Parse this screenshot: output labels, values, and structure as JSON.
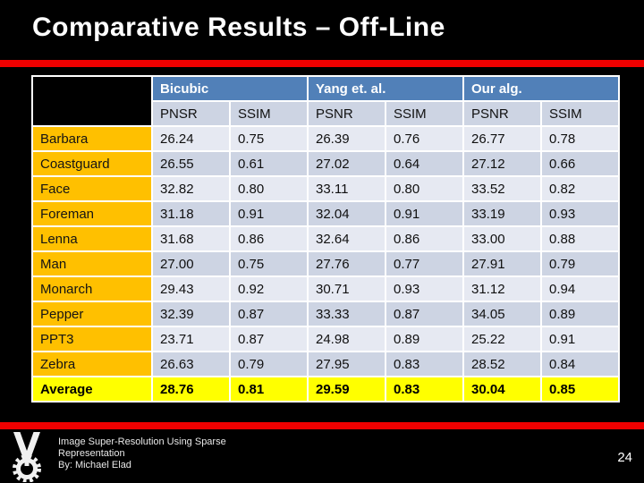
{
  "slide": {
    "title": "Comparative Results – Off-Line",
    "page_number": "24",
    "footer_line1": "Image Super-Resolution Using Sparse",
    "footer_line2": "Representation",
    "footer_line3": "By: Michael Elad",
    "logo": "technion-emblem"
  },
  "colors": {
    "header_blue": "#5180b8",
    "subheader_gray_blue": "#cdd4e3",
    "row_light": "#e6e9f2",
    "row_dark": "#cdd4e3",
    "label_orange": "#ffc000",
    "average_yellow": "#ffff00",
    "accent_red_bar": "#ef0000",
    "background_black": "#000000"
  },
  "table": {
    "groups": [
      {
        "label": "Bicubic"
      },
      {
        "label": "Yang et. al."
      },
      {
        "label": "Our alg."
      }
    ],
    "subheaders": [
      "PNSR",
      "SSIM",
      "PSNR",
      "SSIM",
      "PSNR",
      "SSIM"
    ],
    "rows": [
      {
        "label": "Barbara",
        "values": [
          "26.24",
          "0.75",
          "26.39",
          "0.76",
          "26.77",
          "0.78"
        ]
      },
      {
        "label": "Coastguard",
        "values": [
          "26.55",
          "0.61",
          "27.02",
          "0.64",
          "27.12",
          "0.66"
        ]
      },
      {
        "label": "Face",
        "values": [
          "32.82",
          "0.80",
          "33.11",
          "0.80",
          "33.52",
          "0.82"
        ]
      },
      {
        "label": "Foreman",
        "values": [
          "31.18",
          "0.91",
          "32.04",
          "0.91",
          "33.19",
          "0.93"
        ]
      },
      {
        "label": "Lenna",
        "values": [
          "31.68",
          "0.86",
          "32.64",
          "0.86",
          "33.00",
          "0.88"
        ]
      },
      {
        "label": "Man",
        "values": [
          "27.00",
          "0.75",
          "27.76",
          "0.77",
          "27.91",
          "0.79"
        ]
      },
      {
        "label": "Monarch",
        "values": [
          "29.43",
          "0.92",
          "30.71",
          "0.93",
          "31.12",
          "0.94"
        ]
      },
      {
        "label": "Pepper",
        "values": [
          "32.39",
          "0.87",
          "33.33",
          "0.87",
          "34.05",
          "0.89"
        ]
      },
      {
        "label": "PPT3",
        "values": [
          "23.71",
          "0.87",
          "24.98",
          "0.89",
          "25.22",
          "0.91"
        ]
      },
      {
        "label": "Zebra",
        "values": [
          "26.63",
          "0.79",
          "27.95",
          "0.83",
          "28.52",
          "0.84"
        ]
      },
      {
        "label": "Average",
        "values": [
          "28.76",
          "0.81",
          "29.59",
          "0.83",
          "30.04",
          "0.85"
        ],
        "highlight": true
      }
    ]
  },
  "chart_data": {
    "type": "table",
    "title": "Comparative Results – Off-Line",
    "column_groups": [
      "Bicubic",
      "Yang et. al.",
      "Our alg."
    ],
    "columns": [
      "PNSR",
      "SSIM",
      "PSNR",
      "SSIM",
      "PSNR",
      "SSIM"
    ],
    "row_labels": [
      "Barbara",
      "Coastguard",
      "Face",
      "Foreman",
      "Lenna",
      "Man",
      "Monarch",
      "Pepper",
      "PPT3",
      "Zebra",
      "Average"
    ],
    "values": [
      [
        26.24,
        0.75,
        26.39,
        0.76,
        26.77,
        0.78
      ],
      [
        26.55,
        0.61,
        27.02,
        0.64,
        27.12,
        0.66
      ],
      [
        32.82,
        0.8,
        33.11,
        0.8,
        33.52,
        0.82
      ],
      [
        31.18,
        0.91,
        32.04,
        0.91,
        33.19,
        0.93
      ],
      [
        31.68,
        0.86,
        32.64,
        0.86,
        33.0,
        0.88
      ],
      [
        27.0,
        0.75,
        27.76,
        0.77,
        27.91,
        0.79
      ],
      [
        29.43,
        0.92,
        30.71,
        0.93,
        31.12,
        0.94
      ],
      [
        32.39,
        0.87,
        33.33,
        0.87,
        34.05,
        0.89
      ],
      [
        23.71,
        0.87,
        24.98,
        0.89,
        25.22,
        0.91
      ],
      [
        26.63,
        0.79,
        27.95,
        0.83,
        28.52,
        0.84
      ],
      [
        28.76,
        0.81,
        29.59,
        0.83,
        30.04,
        0.85
      ]
    ]
  }
}
